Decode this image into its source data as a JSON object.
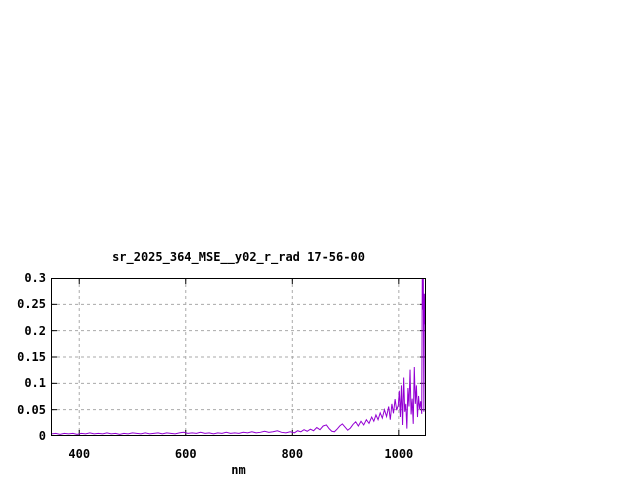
{
  "window": {
    "background_color": "#ffffff"
  },
  "chart": {
    "title": "sr_2025_364_MSE__y02_r_rad 17-56-00",
    "xlabel": "nm",
    "line_color": "#9400d3",
    "grid_color": "#aaaaaa",
    "border_color": "#000000",
    "x_ticks": [
      400,
      600,
      800,
      1000
    ],
    "x_tick_labels": [
      "400",
      "600",
      "800",
      "1000"
    ],
    "y_ticks": [
      0,
      0.05,
      0.1,
      0.15,
      0.2,
      0.25,
      0.3
    ],
    "y_tick_labels": [
      "0",
      "0.05",
      "0.1",
      "0.15",
      "0.2",
      "0.25",
      "0.3"
    ],
    "xlim": [
      347,
      1051
    ],
    "ylim": [
      0,
      0.3
    ]
  },
  "chart_data": {
    "type": "line",
    "title": "sr_2025_364_MSE__y02_r_rad 17-56-00",
    "xlabel": "nm",
    "ylabel": "",
    "xlim": [
      347,
      1051
    ],
    "ylim": [
      0,
      0.3
    ],
    "grid": true,
    "legend": false,
    "series": [
      {
        "name": "sr_2025_364_MSE__y02_r_rad",
        "color": "#9400d3",
        "points": [
          [
            348,
            0.004
          ],
          [
            356,
            0.005
          ],
          [
            364,
            0.003
          ],
          [
            372,
            0.005
          ],
          [
            380,
            0.004
          ],
          [
            388,
            0.005
          ],
          [
            396,
            0.003
          ],
          [
            404,
            0.005
          ],
          [
            412,
            0.004
          ],
          [
            420,
            0.006
          ],
          [
            428,
            0.004
          ],
          [
            436,
            0.005
          ],
          [
            444,
            0.004
          ],
          [
            452,
            0.006
          ],
          [
            460,
            0.004
          ],
          [
            468,
            0.005
          ],
          [
            476,
            0.003
          ],
          [
            484,
            0.005
          ],
          [
            492,
            0.004
          ],
          [
            500,
            0.006
          ],
          [
            508,
            0.005
          ],
          [
            516,
            0.004
          ],
          [
            524,
            0.006
          ],
          [
            532,
            0.004
          ],
          [
            540,
            0.005
          ],
          [
            548,
            0.006
          ],
          [
            556,
            0.004
          ],
          [
            564,
            0.006
          ],
          [
            572,
            0.005
          ],
          [
            580,
            0.004
          ],
          [
            588,
            0.006
          ],
          [
            596,
            0.007
          ],
          [
            604,
            0.005
          ],
          [
            612,
            0.006
          ],
          [
            620,
            0.005
          ],
          [
            628,
            0.007
          ],
          [
            636,
            0.005
          ],
          [
            644,
            0.006
          ],
          [
            652,
            0.004
          ],
          [
            660,
            0.006
          ],
          [
            668,
            0.005
          ],
          [
            676,
            0.007
          ],
          [
            684,
            0.005
          ],
          [
            692,
            0.006
          ],
          [
            700,
            0.005
          ],
          [
            708,
            0.007
          ],
          [
            716,
            0.006
          ],
          [
            724,
            0.008
          ],
          [
            732,
            0.006
          ],
          [
            740,
            0.007
          ],
          [
            748,
            0.009
          ],
          [
            756,
            0.007
          ],
          [
            764,
            0.008
          ],
          [
            772,
            0.01
          ],
          [
            780,
            0.007
          ],
          [
            788,
            0.006
          ],
          [
            796,
            0.008
          ],
          [
            804,
            0.006
          ],
          [
            810,
            0.01
          ],
          [
            816,
            0.008
          ],
          [
            822,
            0.012
          ],
          [
            828,
            0.009
          ],
          [
            834,
            0.013
          ],
          [
            840,
            0.01
          ],
          [
            846,
            0.016
          ],
          [
            852,
            0.012
          ],
          [
            858,
            0.019
          ],
          [
            864,
            0.021
          ],
          [
            869,
            0.014
          ],
          [
            874,
            0.009
          ],
          [
            879,
            0.008
          ],
          [
            884,
            0.013
          ],
          [
            889,
            0.019
          ],
          [
            894,
            0.023
          ],
          [
            899,
            0.017
          ],
          [
            904,
            0.011
          ],
          [
            909,
            0.015
          ],
          [
            914,
            0.022
          ],
          [
            919,
            0.027
          ],
          [
            924,
            0.019
          ],
          [
            929,
            0.028
          ],
          [
            934,
            0.021
          ],
          [
            939,
            0.031
          ],
          [
            944,
            0.024
          ],
          [
            949,
            0.036
          ],
          [
            953,
            0.028
          ],
          [
            957,
            0.04
          ],
          [
            961,
            0.031
          ],
          [
            965,
            0.044
          ],
          [
            969,
            0.034
          ],
          [
            973,
            0.05
          ],
          [
            977,
            0.037
          ],
          [
            981,
            0.056
          ],
          [
            984,
            0.031
          ],
          [
            987,
            0.061
          ],
          [
            990,
            0.043
          ],
          [
            993,
            0.07
          ],
          [
            996,
            0.049
          ],
          [
            999,
            0.058
          ],
          [
            1001,
            0.086
          ],
          [
            1003,
            0.036
          ],
          [
            1005,
            0.096
          ],
          [
            1007,
            0.021
          ],
          [
            1009,
            0.111
          ],
          [
            1011,
            0.046
          ],
          [
            1013,
            0.061
          ],
          [
            1015,
            0.014
          ],
          [
            1017,
            0.091
          ],
          [
            1019,
            0.056
          ],
          [
            1021,
            0.126
          ],
          [
            1023,
            0.041
          ],
          [
            1025,
            0.071
          ],
          [
            1027,
            0.023
          ],
          [
            1029,
            0.131
          ],
          [
            1031,
            0.061
          ],
          [
            1033,
            0.096
          ],
          [
            1035,
            0.036
          ],
          [
            1037,
            0.076
          ],
          [
            1039,
            0.051
          ],
          [
            1041,
            0.066
          ],
          [
            1043,
            0.042
          ],
          [
            1044,
            0.3
          ],
          [
            1045,
            0.24
          ],
          [
            1046,
            0.298
          ],
          [
            1047,
            0.046
          ],
          [
            1048,
            0.27
          ],
          [
            1049,
            0.212
          ],
          [
            1050,
            0.232
          ],
          [
            1051,
            0.205
          ]
        ]
      }
    ]
  }
}
